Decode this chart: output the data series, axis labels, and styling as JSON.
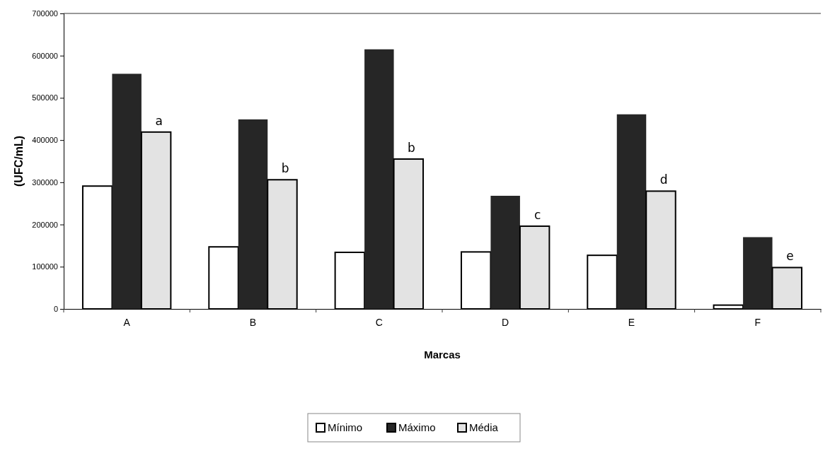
{
  "chart_data": {
    "type": "bar",
    "xlabel": "Marcas",
    "ylabel": "(UFC/mL)",
    "categories": [
      "A",
      "B",
      "C",
      "D",
      "E",
      "F"
    ],
    "series": [
      {
        "name": "Mínimo",
        "color": "#ffffff",
        "values": [
          291000,
          147000,
          134000,
          135000,
          127000,
          9000
        ]
      },
      {
        "name": "Máximo",
        "color": "#262626",
        "values": [
          557000,
          449000,
          615000,
          268000,
          461000,
          170000
        ]
      },
      {
        "name": "Média",
        "color": "#e3e3e3",
        "values": [
          419000,
          306000,
          355000,
          196000,
          279000,
          98000
        ],
        "value_labels": [
          "a",
          "b",
          "b",
          "c",
          "d",
          "e"
        ]
      }
    ],
    "ylim": [
      0,
      700000
    ],
    "yticks": [
      0,
      100000,
      200000,
      300000,
      400000,
      500000,
      600000,
      700000
    ],
    "legend": "bottom"
  }
}
